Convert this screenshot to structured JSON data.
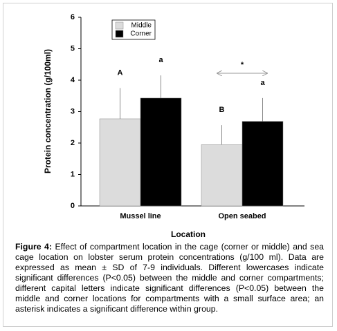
{
  "chart_data": {
    "type": "bar",
    "x_label": "Location",
    "y_label": "Protein concentration (g/100ml)",
    "categories": [
      "Mussel line",
      "Open seabed"
    ],
    "series": [
      {
        "name": "Middle",
        "color": "#dcdcdc",
        "values": [
          2.77,
          1.95
        ],
        "errors": [
          0.98,
          0.62
        ],
        "letters": [
          "A",
          "B"
        ]
      },
      {
        "name": "Corner",
        "color": "#000000",
        "values": [
          3.43,
          2.69
        ],
        "errors": [
          0.72,
          0.74
        ],
        "letters": [
          "a",
          "a"
        ]
      }
    ],
    "asterisk": "*",
    "ylim": [
      0,
      6
    ],
    "yticks": [
      0,
      1,
      2,
      3,
      4,
      5,
      6
    ],
    "grid": false
  },
  "caption_label": "Figure 4:",
  "caption": "Effect of compartment location in the cage (corner or middle) and sea cage location on lobster serum protein concentrations (g/100 ml). Data are expressed as mean ± SD of 7-9 individuals. Different lowercases indicate significant differences (P<0.05) between the middle and corner compartments; different capital letters indicate significant differences (P<0.05) between the middle and corner locations for compartments with a small surface area; an asterisk indicates a significant difference within group."
}
